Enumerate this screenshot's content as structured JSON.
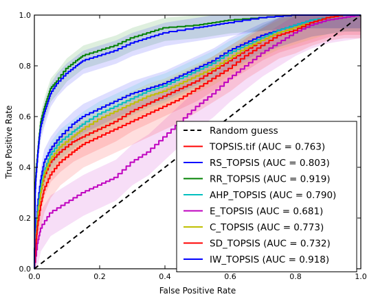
{
  "chart_data": {
    "type": "line",
    "xlabel": "False Positive Rate",
    "ylabel": "True Positive Rate",
    "xlim": [
      0.0,
      1.0
    ],
    "ylim": [
      0.0,
      1.0
    ],
    "x_ticks": [
      "0.0",
      "0.2",
      "0.4",
      "0.6",
      "0.8",
      "1.0"
    ],
    "y_ticks": [
      "0.0",
      "0.2",
      "0.4",
      "0.6",
      "0.8",
      "1.0"
    ],
    "grid": false,
    "legend_position": "lower-right",
    "reference_line": {
      "name": "Random guess",
      "color": "#000000",
      "style": "dashed",
      "points": [
        [
          0,
          0
        ],
        [
          1,
          1
        ]
      ]
    },
    "series": [
      {
        "name": "TOPSIS.tif (AUC = 0.763)",
        "color": "#ff0000",
        "points": [
          [
            0,
            0
          ],
          [
            0.005,
            0.12
          ],
          [
            0.01,
            0.2
          ],
          [
            0.02,
            0.3
          ],
          [
            0.03,
            0.36
          ],
          [
            0.05,
            0.42
          ],
          [
            0.08,
            0.46
          ],
          [
            0.12,
            0.5
          ],
          [
            0.15,
            0.52
          ],
          [
            0.2,
            0.55
          ],
          [
            0.25,
            0.58
          ],
          [
            0.3,
            0.62
          ],
          [
            0.35,
            0.65
          ],
          [
            0.4,
            0.68
          ],
          [
            0.45,
            0.71
          ],
          [
            0.5,
            0.74
          ],
          [
            0.55,
            0.78
          ],
          [
            0.6,
            0.82
          ],
          [
            0.65,
            0.86
          ],
          [
            0.7,
            0.9
          ],
          [
            0.75,
            0.93
          ],
          [
            0.8,
            0.95
          ],
          [
            0.85,
            0.97
          ],
          [
            0.9,
            0.99
          ],
          [
            0.95,
            1.0
          ],
          [
            1,
            1
          ]
        ],
        "band": 0.06
      },
      {
        "name": "RS_TOPSIS (AUC = 0.803)",
        "color": "#0000ff",
        "points": [
          [
            0,
            0
          ],
          [
            0.005,
            0.15
          ],
          [
            0.01,
            0.25
          ],
          [
            0.02,
            0.35
          ],
          [
            0.03,
            0.42
          ],
          [
            0.05,
            0.47
          ],
          [
            0.08,
            0.52
          ],
          [
            0.12,
            0.57
          ],
          [
            0.15,
            0.6
          ],
          [
            0.2,
            0.63
          ],
          [
            0.25,
            0.66
          ],
          [
            0.3,
            0.69
          ],
          [
            0.35,
            0.71
          ],
          [
            0.4,
            0.73
          ],
          [
            0.45,
            0.76
          ],
          [
            0.5,
            0.79
          ],
          [
            0.55,
            0.82
          ],
          [
            0.6,
            0.86
          ],
          [
            0.65,
            0.89
          ],
          [
            0.7,
            0.92
          ],
          [
            0.75,
            0.94
          ],
          [
            0.8,
            0.96
          ],
          [
            0.85,
            0.98
          ],
          [
            0.9,
            0.99
          ],
          [
            0.95,
            1.0
          ],
          [
            1,
            1
          ]
        ],
        "band": 0.05
      },
      {
        "name": "RR_TOPSIS (AUC = 0.919)",
        "color": "#008000",
        "points": [
          [
            0,
            0
          ],
          [
            0.003,
            0.33
          ],
          [
            0.005,
            0.38
          ],
          [
            0.01,
            0.45
          ],
          [
            0.015,
            0.52
          ],
          [
            0.02,
            0.58
          ],
          [
            0.03,
            0.63
          ],
          [
            0.04,
            0.67
          ],
          [
            0.05,
            0.71
          ],
          [
            0.07,
            0.74
          ],
          [
            0.1,
            0.79
          ],
          [
            0.13,
            0.82
          ],
          [
            0.15,
            0.84
          ],
          [
            0.2,
            0.86
          ],
          [
            0.25,
            0.88
          ],
          [
            0.3,
            0.91
          ],
          [
            0.35,
            0.93
          ],
          [
            0.4,
            0.95
          ],
          [
            0.5,
            0.96
          ],
          [
            0.55,
            0.97
          ],
          [
            0.6,
            0.98
          ],
          [
            0.7,
            0.99
          ],
          [
            0.8,
            1.0
          ],
          [
            1,
            1
          ]
        ],
        "band": 0.04
      },
      {
        "name": "AHP_TOPSIS (AUC = 0.790)",
        "color": "#00bfbf",
        "points": [
          [
            0,
            0
          ],
          [
            0.005,
            0.13
          ],
          [
            0.01,
            0.22
          ],
          [
            0.02,
            0.32
          ],
          [
            0.03,
            0.38
          ],
          [
            0.05,
            0.45
          ],
          [
            0.08,
            0.5
          ],
          [
            0.12,
            0.54
          ],
          [
            0.15,
            0.57
          ],
          [
            0.2,
            0.61
          ],
          [
            0.25,
            0.64
          ],
          [
            0.3,
            0.67
          ],
          [
            0.35,
            0.7
          ],
          [
            0.4,
            0.72
          ],
          [
            0.45,
            0.75
          ],
          [
            0.5,
            0.78
          ],
          [
            0.55,
            0.81
          ],
          [
            0.6,
            0.85
          ],
          [
            0.65,
            0.88
          ],
          [
            0.7,
            0.91
          ],
          [
            0.75,
            0.94
          ],
          [
            0.8,
            0.96
          ],
          [
            0.85,
            0.98
          ],
          [
            0.9,
            0.99
          ],
          [
            0.95,
            1.0
          ],
          [
            1,
            1
          ]
        ],
        "band": 0.05
      },
      {
        "name": "E_TOPSIS (AUC = 0.681)",
        "color": "#bf00bf",
        "points": [
          [
            0,
            0
          ],
          [
            0.01,
            0.1
          ],
          [
            0.02,
            0.16
          ],
          [
            0.05,
            0.22
          ],
          [
            0.1,
            0.26
          ],
          [
            0.15,
            0.3
          ],
          [
            0.2,
            0.33
          ],
          [
            0.25,
            0.36
          ],
          [
            0.3,
            0.42
          ],
          [
            0.35,
            0.46
          ],
          [
            0.4,
            0.52
          ],
          [
            0.45,
            0.58
          ],
          [
            0.5,
            0.64
          ],
          [
            0.55,
            0.69
          ],
          [
            0.6,
            0.75
          ],
          [
            0.65,
            0.8
          ],
          [
            0.7,
            0.85
          ],
          [
            0.75,
            0.89
          ],
          [
            0.8,
            0.93
          ],
          [
            0.85,
            0.96
          ],
          [
            0.9,
            0.98
          ],
          [
            0.95,
            0.99
          ],
          [
            1,
            1
          ]
        ],
        "band": 0.07
      },
      {
        "name": "C_TOPSIS (AUC = 0.773)",
        "color": "#bfbf00",
        "points": [
          [
            0,
            0
          ],
          [
            0.005,
            0.12
          ],
          [
            0.01,
            0.2
          ],
          [
            0.02,
            0.3
          ],
          [
            0.03,
            0.37
          ],
          [
            0.05,
            0.43
          ],
          [
            0.08,
            0.48
          ],
          [
            0.12,
            0.52
          ],
          [
            0.15,
            0.55
          ],
          [
            0.2,
            0.59
          ],
          [
            0.25,
            0.62
          ],
          [
            0.3,
            0.65
          ],
          [
            0.35,
            0.68
          ],
          [
            0.4,
            0.7
          ],
          [
            0.45,
            0.73
          ],
          [
            0.5,
            0.76
          ],
          [
            0.55,
            0.79
          ],
          [
            0.6,
            0.83
          ],
          [
            0.65,
            0.87
          ],
          [
            0.7,
            0.9
          ],
          [
            0.75,
            0.93
          ],
          [
            0.8,
            0.95
          ],
          [
            0.85,
            0.97
          ],
          [
            0.9,
            0.99
          ],
          [
            0.95,
            1.0
          ],
          [
            1,
            1
          ]
        ],
        "band": 0.05
      },
      {
        "name": "SD_TOPSIS (AUC = 0.732)",
        "color": "#ff0000",
        "points": [
          [
            0,
            0
          ],
          [
            0.005,
            0.1
          ],
          [
            0.01,
            0.17
          ],
          [
            0.02,
            0.25
          ],
          [
            0.03,
            0.31
          ],
          [
            0.05,
            0.37
          ],
          [
            0.08,
            0.42
          ],
          [
            0.12,
            0.46
          ],
          [
            0.15,
            0.49
          ],
          [
            0.2,
            0.52
          ],
          [
            0.25,
            0.55
          ],
          [
            0.3,
            0.58
          ],
          [
            0.35,
            0.61
          ],
          [
            0.4,
            0.64
          ],
          [
            0.45,
            0.67
          ],
          [
            0.5,
            0.71
          ],
          [
            0.55,
            0.75
          ],
          [
            0.6,
            0.79
          ],
          [
            0.65,
            0.84
          ],
          [
            0.7,
            0.88
          ],
          [
            0.75,
            0.92
          ],
          [
            0.8,
            0.94
          ],
          [
            0.85,
            0.97
          ],
          [
            0.9,
            0.99
          ],
          [
            0.95,
            1.0
          ],
          [
            1,
            1
          ]
        ],
        "band": 0.07
      },
      {
        "name": "IW_TOPSIS (AUC = 0.918)",
        "color": "#0000ff",
        "points": [
          [
            0,
            0
          ],
          [
            0.003,
            0.3
          ],
          [
            0.005,
            0.36
          ],
          [
            0.01,
            0.44
          ],
          [
            0.015,
            0.51
          ],
          [
            0.02,
            0.56
          ],
          [
            0.03,
            0.61
          ],
          [
            0.04,
            0.65
          ],
          [
            0.05,
            0.69
          ],
          [
            0.07,
            0.73
          ],
          [
            0.1,
            0.77
          ],
          [
            0.13,
            0.8
          ],
          [
            0.15,
            0.82
          ],
          [
            0.2,
            0.84
          ],
          [
            0.25,
            0.86
          ],
          [
            0.3,
            0.89
          ],
          [
            0.35,
            0.91
          ],
          [
            0.4,
            0.93
          ],
          [
            0.5,
            0.95
          ],
          [
            0.55,
            0.96
          ],
          [
            0.6,
            0.97
          ],
          [
            0.7,
            0.99
          ],
          [
            0.8,
            1.0
          ],
          [
            1,
            1
          ]
        ],
        "band": 0.04
      }
    ]
  }
}
